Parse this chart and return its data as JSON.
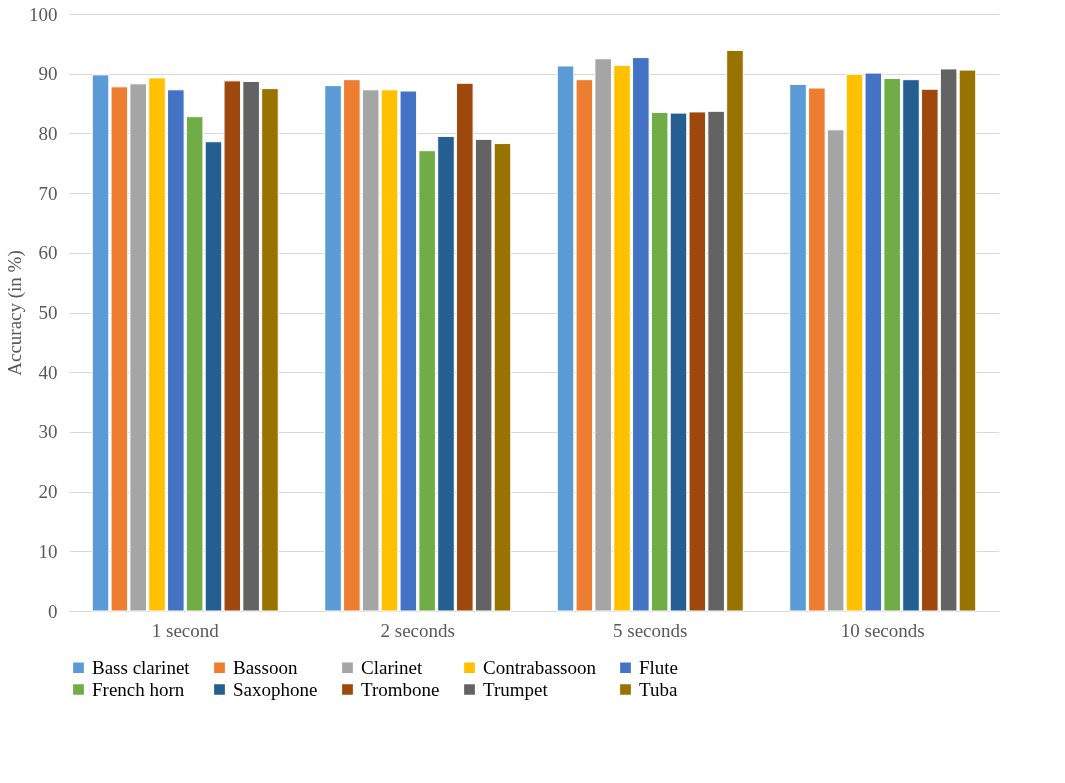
{
  "chart_data": {
    "type": "bar",
    "ylabel": "Accuracy (in %)",
    "categories": [
      "1 second",
      "2 seconds",
      "5 seconds",
      "10 seconds"
    ],
    "series": [
      {
        "name": "Bass clarinet",
        "color": "#5b9bd5",
        "values": [
          89.8,
          88.0,
          91.3,
          88.2
        ]
      },
      {
        "name": "Bassoon",
        "color": "#ed7d31",
        "values": [
          87.8,
          89.0,
          89.0,
          87.6
        ]
      },
      {
        "name": "Clarinet",
        "color": "#a5a5a5",
        "values": [
          88.3,
          87.3,
          92.5,
          80.6
        ]
      },
      {
        "name": "Contrabassoon",
        "color": "#ffc000",
        "values": [
          89.3,
          87.3,
          91.4,
          89.9
        ]
      },
      {
        "name": "Flute",
        "color": "#4472c4",
        "values": [
          87.3,
          87.1,
          92.7,
          90.1
        ]
      },
      {
        "name": "French horn",
        "color": "#70ad47",
        "values": [
          82.8,
          77.1,
          83.5,
          89.2
        ]
      },
      {
        "name": "Saxophone",
        "color": "#255e91",
        "values": [
          78.6,
          79.5,
          83.4,
          89.0
        ]
      },
      {
        "name": "Trombone",
        "color": "#9e480e",
        "values": [
          88.8,
          88.4,
          83.6,
          87.4
        ]
      },
      {
        "name": "Trumpet",
        "color": "#636363",
        "values": [
          88.7,
          79.0,
          83.7,
          90.8
        ]
      },
      {
        "name": "Tuba",
        "color": "#997300",
        "values": [
          87.5,
          78.3,
          93.9,
          90.6
        ]
      }
    ],
    "ylim": [
      0,
      100
    ],
    "yticks": [
      0,
      10,
      20,
      30,
      40,
      50,
      60,
      70,
      80,
      90,
      100
    ],
    "grid": "y",
    "legend": "bottom"
  }
}
